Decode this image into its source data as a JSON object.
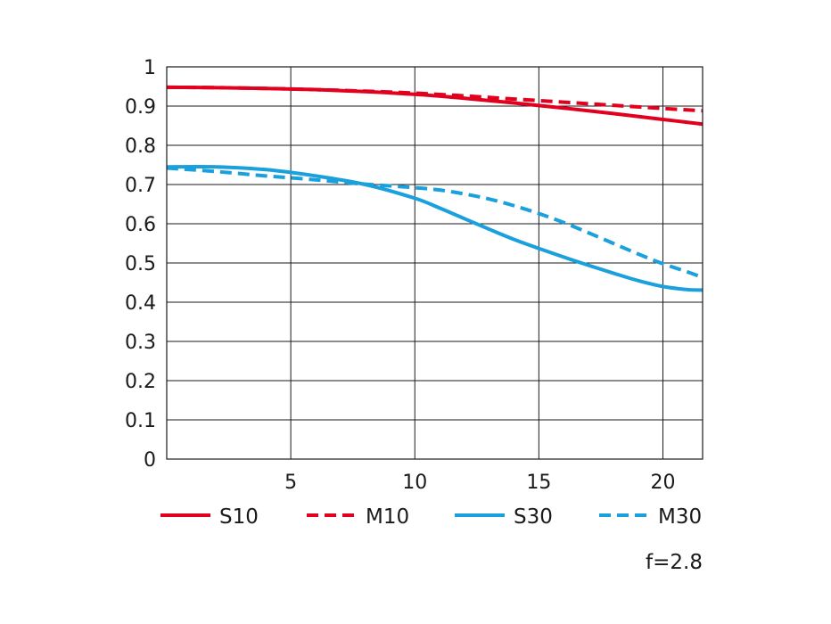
{
  "chart_data": {
    "type": "line",
    "title": "",
    "xlabel": "",
    "ylabel": "",
    "xlim": [
      0,
      21.6
    ],
    "ylim": [
      0,
      1
    ],
    "grid": true,
    "x_ticks": [
      5,
      10,
      15,
      20
    ],
    "x_tick_labels": [
      "5",
      "10",
      "15",
      "20"
    ],
    "y_ticks": [
      0,
      0.1,
      0.2,
      0.3,
      0.4,
      0.5,
      0.6,
      0.7,
      0.8,
      0.9,
      1
    ],
    "y_tick_labels": [
      "0",
      "0.1",
      "0.2",
      "0.3",
      "0.4",
      "0.5",
      "0.6",
      "0.7",
      "0.8",
      "0.9",
      "1"
    ],
    "legend_position": "bottom",
    "annotation": "f=2.8",
    "series": [
      {
        "name": "S10",
        "color": "#e1001e",
        "dash": "solid",
        "x": [
          0,
          2,
          4,
          6,
          8,
          10,
          12,
          14,
          16,
          18,
          20,
          21.6
        ],
        "y": [
          0.948,
          0.947,
          0.945,
          0.942,
          0.937,
          0.93,
          0.92,
          0.908,
          0.895,
          0.881,
          0.866,
          0.854
        ]
      },
      {
        "name": "M10",
        "color": "#e1001e",
        "dash": "dashed",
        "x": [
          0,
          2,
          4,
          6,
          8,
          10,
          12,
          14,
          16,
          18,
          20,
          21.6
        ],
        "y": [
          0.948,
          0.947,
          0.945,
          0.942,
          0.938,
          0.933,
          0.926,
          0.918,
          0.91,
          0.902,
          0.894,
          0.888
        ]
      },
      {
        "name": "S30",
        "color": "#1aa0dd",
        "dash": "solid",
        "x": [
          0,
          2,
          4,
          6,
          8,
          10,
          11,
          12,
          13,
          14,
          15,
          16,
          17,
          18,
          19,
          20,
          21,
          21.6
        ],
        "y": [
          0.745,
          0.745,
          0.738,
          0.722,
          0.7,
          0.665,
          0.64,
          0.613,
          0.586,
          0.56,
          0.537,
          0.515,
          0.494,
          0.474,
          0.455,
          0.44,
          0.432,
          0.431
        ]
      },
      {
        "name": "M30",
        "color": "#1aa0dd",
        "dash": "dashed",
        "x": [
          0,
          2,
          4,
          6,
          8,
          10,
          11,
          12,
          13,
          14,
          15,
          16,
          17,
          18,
          19,
          20,
          21,
          21.6
        ],
        "y": [
          0.742,
          0.733,
          0.722,
          0.712,
          0.701,
          0.692,
          0.686,
          0.676,
          0.663,
          0.646,
          0.626,
          0.603,
          0.577,
          0.55,
          0.523,
          0.498,
          0.477,
          0.463
        ]
      }
    ]
  }
}
